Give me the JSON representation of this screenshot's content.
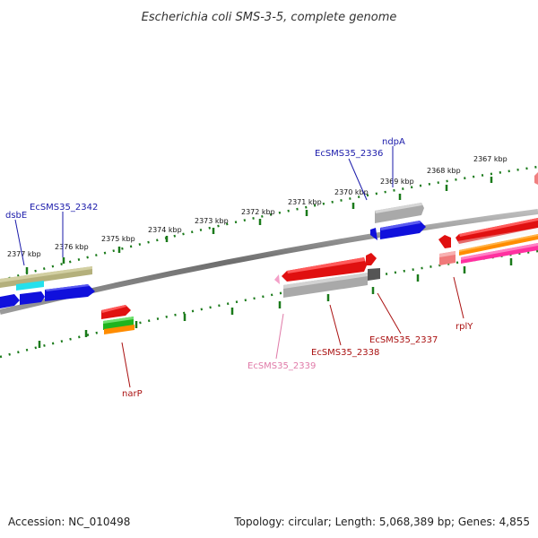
{
  "title": "Escherichia coli SMS-3-5, complete genome",
  "footer": {
    "accession": "Accession: NC_010498",
    "summary": "Topology: circular; Length: 5,068,389 bp; Genes: 4,855"
  },
  "colors": {
    "backbone": "#8a8a8a",
    "tick": "#1a7a1a",
    "blue_label": "#1a1aaa",
    "red_label": "#aa1111",
    "pink_label": "#e07aa8"
  },
  "ticks": [
    "2377 kbp",
    "2376 kbp",
    "2375 kbp",
    "2374 kbp",
    "2373 kbp",
    "2372 kbp",
    "2371 kbp",
    "2370 kbp",
    "2369 kbp",
    "2368 kbp",
    "2367 kbp"
  ],
  "genes": {
    "dsbE": "dsbE",
    "ecsms35_2342": "EcSMS35_2342",
    "ecsms35_2336": "EcSMS35_2336",
    "ndpA": "ndpA",
    "narP": "narP",
    "ecsms35_2339": "EcSMS35_2339",
    "ecsms35_2338": "EcSMS35_2338",
    "ecsms35_2337": "EcSMS35_2337",
    "rplY": "rplY"
  }
}
